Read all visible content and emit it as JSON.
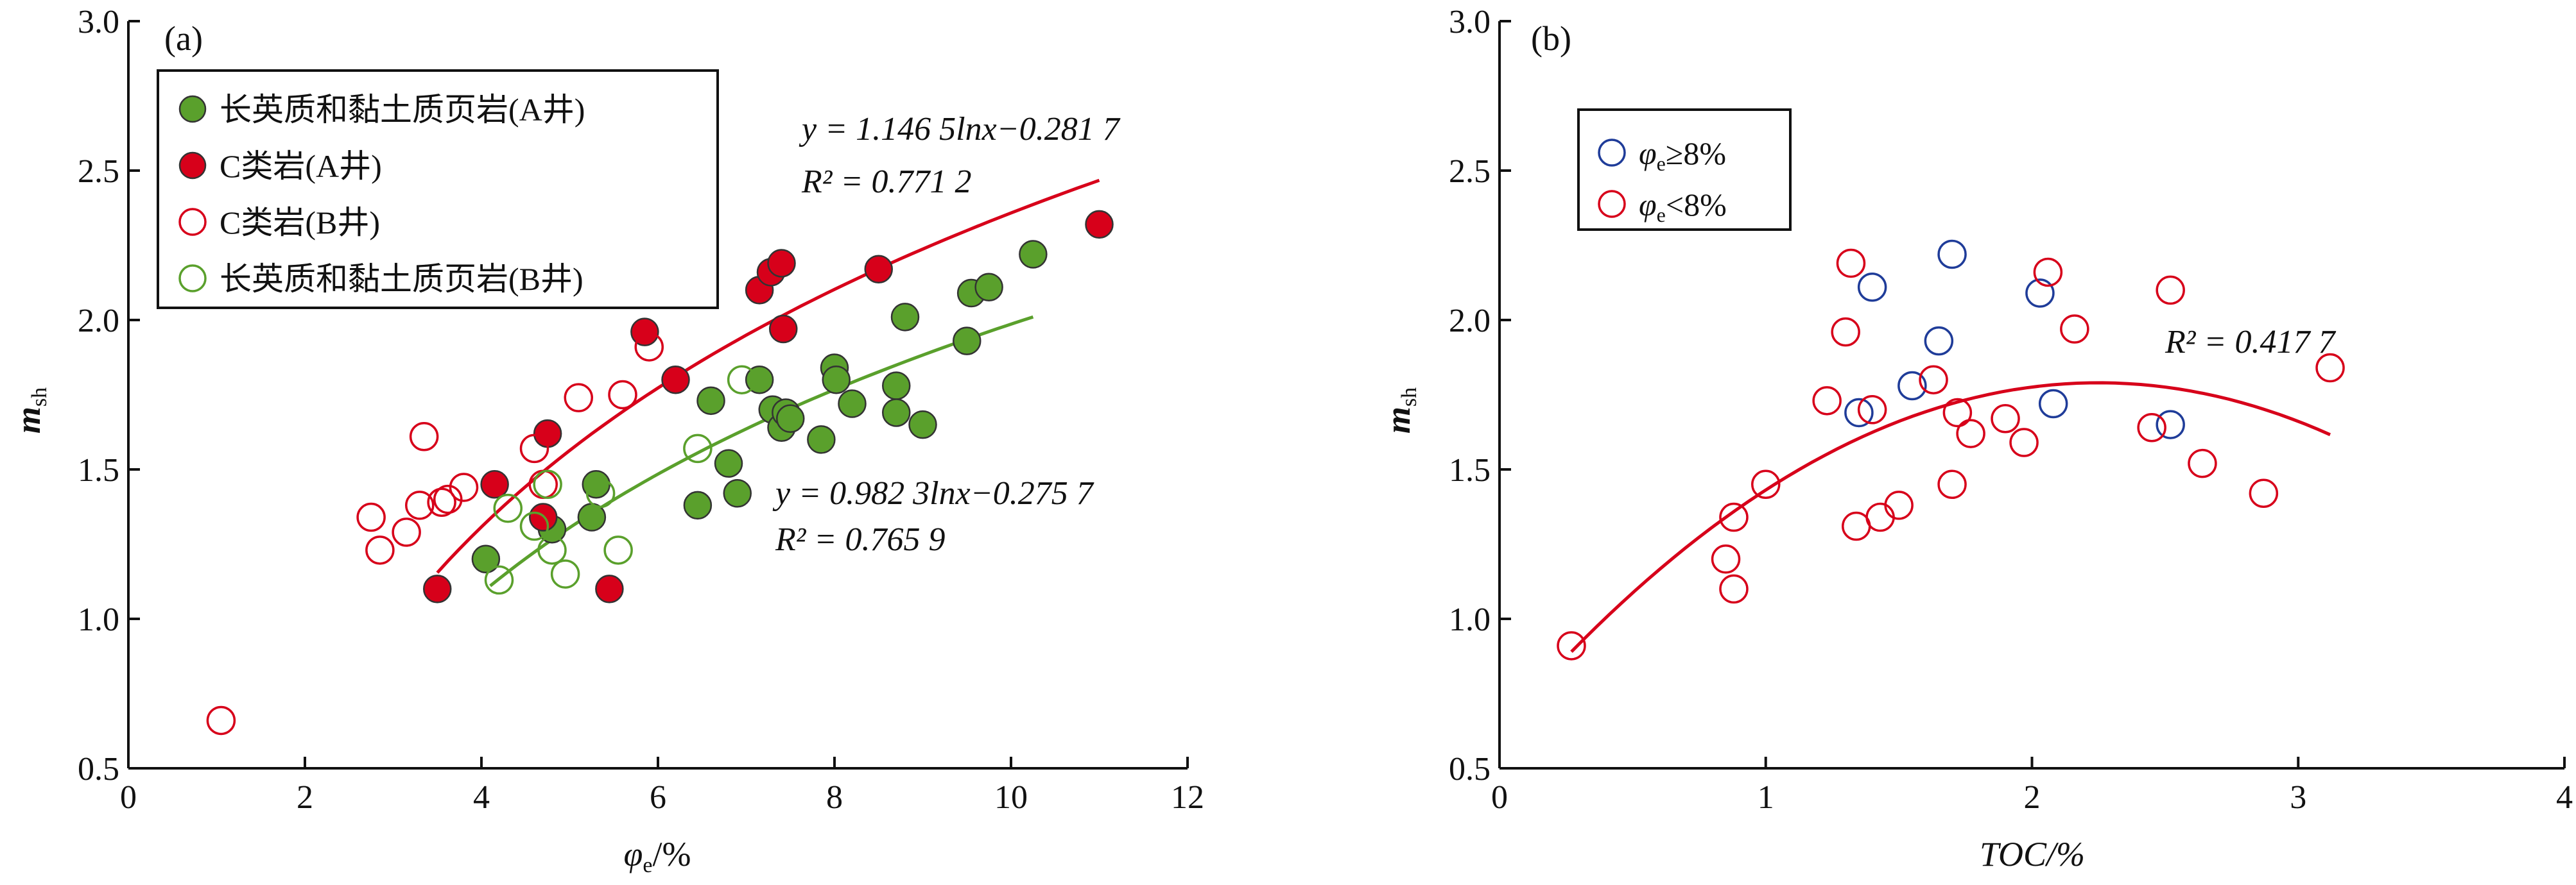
{
  "chart_data": [
    {
      "type": "scatter",
      "panel_label": "(a)",
      "xlabel": "φe/%",
      "xlabel_main": "φ",
      "xlabel_sub": "e",
      "xlabel_tail": "/%",
      "ylabel_main": "m",
      "ylabel_sub": "sh",
      "xlim": [
        0,
        12
      ],
      "ylim": [
        0.5,
        3.0
      ],
      "xticks": [
        "0",
        "2",
        "4",
        "6",
        "8",
        "10",
        "12"
      ],
      "yticks": [
        "0.5",
        "1.0",
        "1.5",
        "2.0",
        "2.5",
        "3.0"
      ],
      "legend_position": "top-left",
      "series": [
        {
          "name": "长英质和黏土质页岩(A井)",
          "color": "#5aa02c",
          "filled": true,
          "points": [
            [
              4.05,
              1.2
            ],
            [
              4.8,
              1.3
            ],
            [
              5.3,
              1.45
            ],
            [
              5.25,
              1.34
            ],
            [
              6.45,
              1.38
            ],
            [
              6.6,
              1.73
            ],
            [
              6.8,
              1.52
            ],
            [
              6.9,
              1.42
            ],
            [
              7.15,
              1.8
            ],
            [
              7.3,
              1.7
            ],
            [
              7.4,
              1.64
            ],
            [
              7.45,
              1.69
            ],
            [
              7.5,
              1.67
            ],
            [
              7.85,
              1.6
            ],
            [
              8.0,
              1.84
            ],
            [
              8.02,
              1.8
            ],
            [
              8.2,
              1.72
            ],
            [
              8.7,
              1.78
            ],
            [
              8.7,
              1.69
            ],
            [
              8.8,
              2.01
            ],
            [
              9.0,
              1.65
            ],
            [
              9.5,
              1.93
            ],
            [
              9.55,
              2.09
            ],
            [
              9.75,
              2.11
            ],
            [
              10.25,
              2.22
            ]
          ]
        },
        {
          "name": "C类岩(A井)",
          "color": "#d7001a",
          "filled": true,
          "points": [
            [
              3.5,
              1.1
            ],
            [
              4.15,
              1.45
            ],
            [
              4.7,
              1.34
            ],
            [
              4.75,
              1.62
            ],
            [
              5.45,
              1.1
            ],
            [
              5.85,
              1.96
            ],
            [
              6.2,
              1.8
            ],
            [
              7.15,
              2.1
            ],
            [
              7.28,
              2.16
            ],
            [
              7.4,
              2.19
            ],
            [
              7.42,
              1.97
            ],
            [
              8.5,
              2.17
            ],
            [
              11.0,
              2.32
            ]
          ]
        },
        {
          "name": "C类岩(B井)",
          "color": "#d7001a",
          "filled": false,
          "points": [
            [
              1.05,
              0.66
            ],
            [
              2.75,
              1.34
            ],
            [
              2.85,
              1.23
            ],
            [
              3.15,
              1.29
            ],
            [
              3.3,
              1.38
            ],
            [
              3.35,
              1.61
            ],
            [
              3.55,
              1.39
            ],
            [
              3.62,
              1.4
            ],
            [
              3.8,
              1.44
            ],
            [
              4.6,
              1.57
            ],
            [
              4.7,
              1.45
            ],
            [
              5.1,
              1.74
            ],
            [
              5.6,
              1.75
            ],
            [
              5.9,
              1.91
            ]
          ]
        },
        {
          "name": "长英质和黏土质页岩(B井)",
          "color": "#5aa02c",
          "filled": false,
          "points": [
            [
              4.2,
              1.13
            ],
            [
              4.3,
              1.37
            ],
            [
              4.6,
              1.31
            ],
            [
              4.75,
              1.45
            ],
            [
              4.8,
              1.23
            ],
            [
              4.95,
              1.15
            ],
            [
              5.35,
              1.42
            ],
            [
              5.55,
              1.23
            ],
            [
              6.45,
              1.57
            ],
            [
              6.95,
              1.8
            ]
          ]
        }
      ],
      "trendlines": [
        {
          "type": "log",
          "a": 1.1465,
          "b": -0.2817,
          "x_range": [
            3.5,
            11.0
          ],
          "color": "#d7001a",
          "equation": "y = 1.146 5lnx−0.281 7",
          "r2": "R² = 0.771 2"
        },
        {
          "type": "log",
          "a": 0.9823,
          "b": -0.2757,
          "x_range": [
            4.1,
            10.25
          ],
          "color": "#5aa02c",
          "equation": "y = 0.982 3lnx−0.275 7",
          "r2": "R² = 0.765 9"
        }
      ]
    },
    {
      "type": "scatter",
      "panel_label": "(b)",
      "xlabel": "TOC/%",
      "ylabel_main": "m",
      "ylabel_sub": "sh",
      "xlim": [
        0,
        4
      ],
      "ylim": [
        0.5,
        3.0
      ],
      "xticks": [
        "0",
        "1",
        "2",
        "3",
        "4"
      ],
      "yticks": [
        "0.5",
        "1.0",
        "1.5",
        "2.0",
        "2.5",
        "3.0"
      ],
      "legend_position": "top-left",
      "series": [
        {
          "name": "φe≥8%",
          "name_main": "φ",
          "name_sub": "e",
          "name_tail": "≥8%",
          "color": "#1f3c99",
          "filled": false,
          "points": [
            [
              1.35,
              1.69
            ],
            [
              1.4,
              2.11
            ],
            [
              1.55,
              1.78
            ],
            [
              1.65,
              1.93
            ],
            [
              1.7,
              2.22
            ],
            [
              2.03,
              2.09
            ],
            [
              2.08,
              1.72
            ],
            [
              2.52,
              1.65
            ]
          ]
        },
        {
          "name": "φe<8%",
          "name_main": "φ",
          "name_sub": "e",
          "name_tail": "<8%",
          "color": "#d7001a",
          "filled": false,
          "points": [
            [
              0.27,
              0.91
            ],
            [
              0.85,
              1.2
            ],
            [
              0.88,
              1.34
            ],
            [
              0.88,
              1.1
            ],
            [
              1.0,
              1.45
            ],
            [
              1.23,
              1.73
            ],
            [
              1.3,
              1.96
            ],
            [
              1.32,
              2.19
            ],
            [
              1.34,
              1.31
            ],
            [
              1.4,
              1.7
            ],
            [
              1.43,
              1.34
            ],
            [
              1.5,
              1.38
            ],
            [
              1.63,
              1.8
            ],
            [
              1.7,
              1.45
            ],
            [
              1.72,
              1.69
            ],
            [
              1.77,
              1.62
            ],
            [
              1.9,
              1.67
            ],
            [
              1.97,
              1.59
            ],
            [
              2.06,
              2.16
            ],
            [
              2.16,
              1.97
            ],
            [
              2.45,
              1.64
            ],
            [
              2.52,
              2.1
            ],
            [
              2.64,
              1.52
            ],
            [
              2.87,
              1.42
            ],
            [
              3.12,
              1.84
            ]
          ]
        }
      ],
      "trendlines": [
        {
          "type": "quadratic",
          "vertex": [
            2.25,
            1.79
          ],
          "k": -0.2296,
          "x_range": [
            0.27,
            3.12
          ],
          "color": "#d7001a",
          "r2": "R² = 0.417 7"
        }
      ]
    }
  ]
}
